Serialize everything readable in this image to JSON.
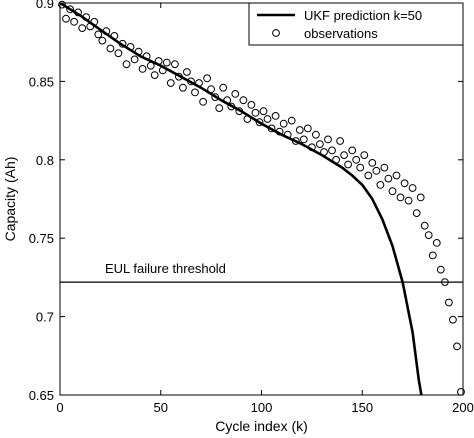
{
  "chart_data": {
    "type": "scatter",
    "xlabel": "Cycle index (k)",
    "ylabel": "Capacity (Ah)",
    "xlim": [
      0,
      200
    ],
    "ylim": [
      0.65,
      0.9
    ],
    "xticks": [
      0,
      50,
      100,
      150,
      200
    ],
    "yticks": [
      0.65,
      0.7,
      0.75,
      0.8,
      0.85,
      0.9
    ],
    "ytick_labels": [
      "0.65",
      "0.7",
      "0.75",
      "0.8",
      "0.85",
      "0.9"
    ],
    "grid": false,
    "legend_position": "top-right",
    "series": [
      {
        "name": "UKF prediction k=50",
        "type": "line",
        "x": [
          0,
          10,
          20,
          30,
          40,
          50,
          60,
          70,
          80,
          90,
          100,
          110,
          120,
          130,
          140,
          145,
          150,
          155,
          160,
          165,
          170,
          175,
          178,
          180
        ],
        "y": [
          0.9,
          0.892,
          0.883,
          0.874,
          0.866,
          0.86,
          0.853,
          0.846,
          0.838,
          0.831,
          0.823,
          0.816,
          0.81,
          0.803,
          0.795,
          0.79,
          0.784,
          0.775,
          0.762,
          0.745,
          0.722,
          0.69,
          0.66,
          0.645
        ]
      },
      {
        "name": "observations",
        "type": "scatter",
        "x": [
          1,
          3,
          5,
          7,
          9,
          11,
          13,
          15,
          17,
          19,
          21,
          23,
          25,
          27,
          29,
          31,
          33,
          35,
          37,
          39,
          41,
          43,
          45,
          47,
          49,
          51,
          53,
          55,
          57,
          59,
          61,
          63,
          65,
          67,
          69,
          71,
          73,
          75,
          77,
          79,
          81,
          83,
          85,
          87,
          89,
          91,
          93,
          95,
          97,
          99,
          101,
          103,
          105,
          107,
          109,
          111,
          113,
          115,
          117,
          119,
          121,
          123,
          125,
          127,
          129,
          131,
          133,
          135,
          137,
          139,
          141,
          143,
          145,
          147,
          149,
          151,
          153,
          155,
          157,
          159,
          161,
          163,
          165,
          167,
          169,
          171,
          173,
          175,
          177,
          179,
          181,
          183,
          185,
          187,
          189,
          191,
          193,
          195,
          197,
          199
        ],
        "y": [
          0.899,
          0.89,
          0.896,
          0.888,
          0.894,
          0.884,
          0.891,
          0.885,
          0.888,
          0.88,
          0.876,
          0.882,
          0.871,
          0.879,
          0.868,
          0.874,
          0.861,
          0.872,
          0.864,
          0.869,
          0.858,
          0.866,
          0.86,
          0.854,
          0.863,
          0.857,
          0.862,
          0.849,
          0.861,
          0.853,
          0.846,
          0.856,
          0.85,
          0.843,
          0.849,
          0.837,
          0.852,
          0.845,
          0.84,
          0.833,
          0.846,
          0.838,
          0.834,
          0.842,
          0.831,
          0.838,
          0.826,
          0.835,
          0.83,
          0.824,
          0.831,
          0.826,
          0.82,
          0.828,
          0.818,
          0.823,
          0.816,
          0.825,
          0.812,
          0.819,
          0.813,
          0.82,
          0.808,
          0.816,
          0.81,
          0.805,
          0.813,
          0.806,
          0.8,
          0.812,
          0.803,
          0.797,
          0.806,
          0.8,
          0.795,
          0.803,
          0.79,
          0.798,
          0.793,
          0.784,
          0.795,
          0.788,
          0.78,
          0.79,
          0.776,
          0.785,
          0.774,
          0.782,
          0.766,
          0.776,
          0.758,
          0.752,
          0.739,
          0.747,
          0.73,
          0.722,
          0.709,
          0.698,
          0.681,
          0.652
        ]
      }
    ],
    "annotations": [
      {
        "text": "EUL failure threshold",
        "y": 0.722
      }
    ]
  }
}
